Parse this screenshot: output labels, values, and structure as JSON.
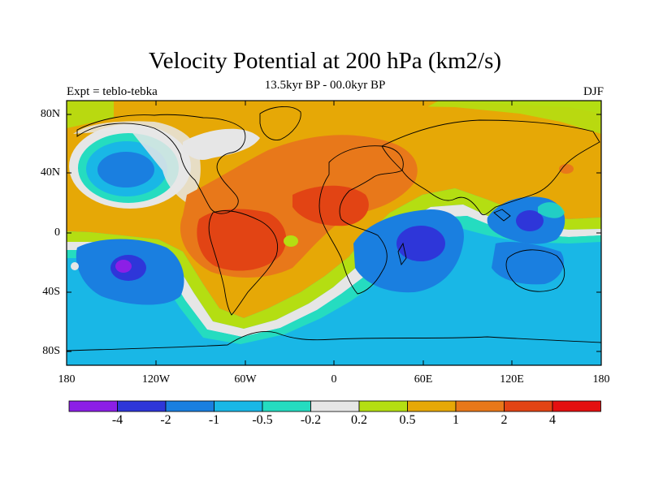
{
  "map": {
    "title": "Velocity Potential at 200 hPa (km2/s)",
    "subtitle": "13.5kyr BP - 00.0kyr BP",
    "left_label": "Expt = teblo-tebka",
    "right_label": "DJF",
    "projection": "cylindrical equidistant",
    "lon_range": [
      -180,
      180
    ],
    "lat_range": [
      -90,
      90
    ],
    "lat_ticks": [
      "80N",
      "40N",
      "0",
      "40S",
      "80S"
    ],
    "lon_ticks": [
      "180",
      "120W",
      "60W",
      "0",
      "60E",
      "120E",
      "180"
    ],
    "colorbar": {
      "labels": [
        "-4",
        "-2",
        "-1",
        "-0.5",
        "-0.2",
        "0.2",
        "0.5",
        "1",
        "2",
        "4"
      ],
      "colors": [
        "#8c1fe6",
        "#2e36d9",
        "#1a7fe0",
        "#19b7e6",
        "#25dcc0",
        "#e6e6e6",
        "#b4de12",
        "#e6a806",
        "#e8781a",
        "#e24414",
        "#e41010"
      ]
    }
  }
}
